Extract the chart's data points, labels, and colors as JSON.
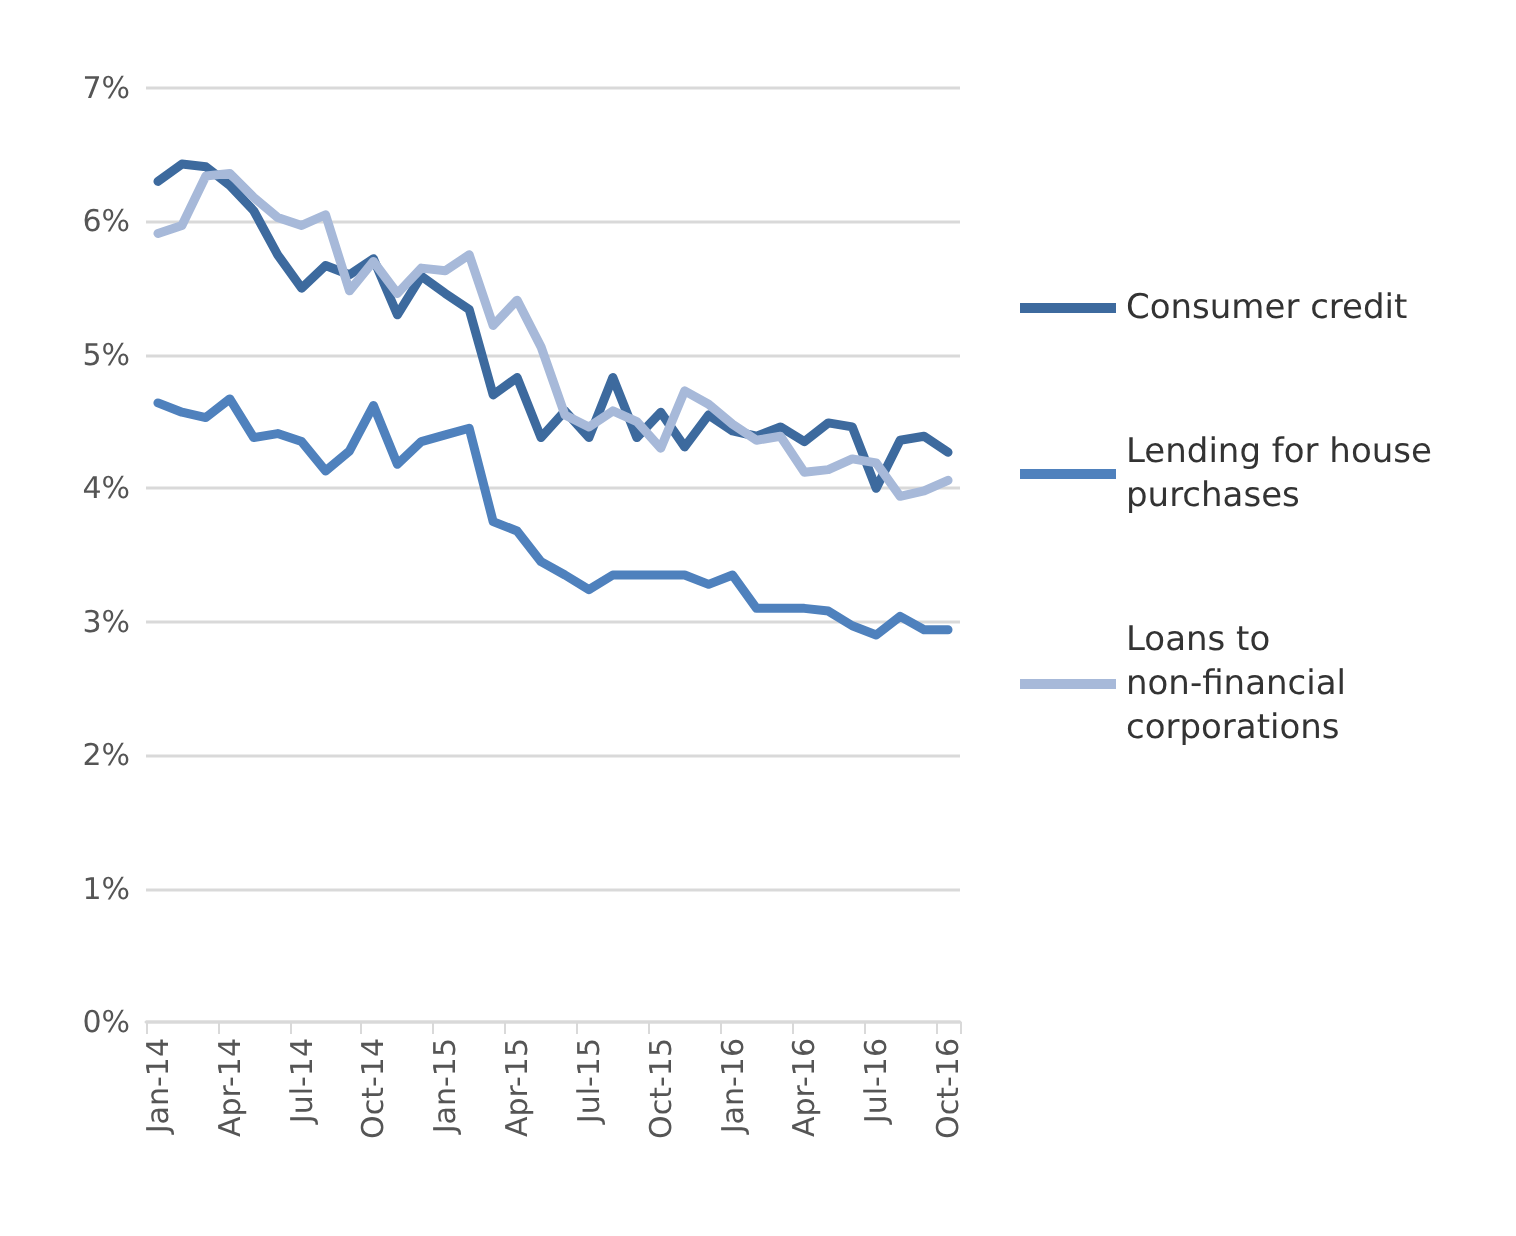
{
  "chart_data": {
    "type": "line",
    "categories": [
      "Jan-14",
      null,
      null,
      "Apr-14",
      null,
      null,
      "Jul-14",
      null,
      null,
      "Oct-14",
      null,
      null,
      "Jan-15",
      null,
      null,
      "Apr-15",
      null,
      null,
      "Jul-15",
      null,
      null,
      "Oct-15",
      null,
      null,
      "Jan-16",
      null,
      null,
      "Apr-16",
      null,
      null,
      "Jul-16",
      null,
      null,
      "Oct-16"
    ],
    "series": [
      {
        "name": "Consumer credit",
        "color": "#3d6a9e",
        "values": [
          6.3,
          6.43,
          6.41,
          6.27,
          6.08,
          5.75,
          5.5,
          5.67,
          5.6,
          5.72,
          5.3,
          5.59,
          5.46,
          5.34,
          4.7,
          4.83,
          4.38,
          4.58,
          4.38,
          4.83,
          4.38,
          4.57,
          4.31,
          4.55,
          4.43,
          4.39,
          4.46,
          4.35,
          4.49,
          4.46,
          4.0,
          4.36,
          4.39,
          4.27
        ]
      },
      {
        "name": "Lending for house purchases",
        "color": "#4f81bd",
        "values": [
          4.64,
          4.57,
          4.53,
          4.67,
          4.38,
          4.41,
          4.35,
          4.13,
          4.28,
          4.62,
          4.18,
          4.35,
          4.4,
          4.45,
          3.75,
          3.68,
          3.45,
          3.35,
          3.24,
          3.35,
          3.35,
          3.35,
          3.35,
          3.28,
          3.35,
          3.1,
          3.1,
          3.1,
          3.08,
          2.97,
          2.9,
          3.04,
          2.94,
          2.94
        ]
      },
      {
        "name": "Loans to non-financial corporations",
        "color": "#a7b9d9",
        "values": [
          5.91,
          5.97,
          6.34,
          6.36,
          6.18,
          6.03,
          5.97,
          6.05,
          5.48,
          5.7,
          5.46,
          5.65,
          5.63,
          5.75,
          5.22,
          5.41,
          5.06,
          4.55,
          4.46,
          4.58,
          4.5,
          4.3,
          4.73,
          4.63,
          4.48,
          4.36,
          4.39,
          4.12,
          4.14,
          4.22,
          4.19,
          3.94,
          3.98,
          4.06
        ]
      }
    ],
    "ylim": [
      0,
      7
    ],
    "yticks": [
      {
        "value": 0,
        "label": "0%"
      },
      {
        "value": 1,
        "label": "1%"
      },
      {
        "value": 2,
        "label": "2%"
      },
      {
        "value": 3,
        "label": "3%"
      },
      {
        "value": 4,
        "label": "4%"
      },
      {
        "value": 5,
        "label": "5%"
      },
      {
        "value": 6,
        "label": "6%"
      },
      {
        "value": 7,
        "label": "7%"
      }
    ],
    "grid": "y",
    "legend": "right",
    "marker": "none",
    "line_style": "solid"
  }
}
